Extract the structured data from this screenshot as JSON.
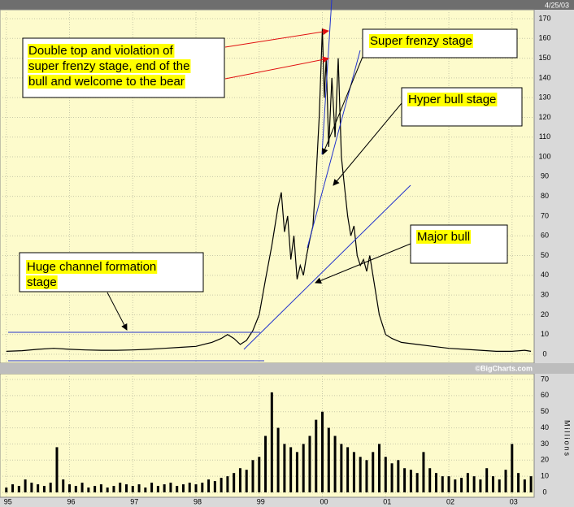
{
  "chart_data": [
    {
      "type": "line",
      "date": "4/25/03",
      "color": "#000000",
      "x": [
        1995.0,
        1995.25,
        1995.5,
        1995.75,
        1996.0,
        1996.25,
        1996.5,
        1996.75,
        1997.0,
        1997.25,
        1997.5,
        1997.75,
        1998.0,
        1998.25,
        1998.4,
        1998.5,
        1998.6,
        1998.7,
        1998.8,
        1998.9,
        1999.0,
        1999.1,
        1999.2,
        1999.3,
        1999.35,
        1999.4,
        1999.45,
        1999.5,
        1999.55,
        1999.6,
        1999.65,
        1999.7,
        1999.75,
        1999.8,
        1999.85,
        1999.9,
        1999.95,
        2000.0,
        2000.03,
        2000.06,
        2000.1,
        2000.15,
        2000.2,
        2000.25,
        2000.3,
        2000.35,
        2000.4,
        2000.45,
        2000.5,
        2000.55,
        2000.6,
        2000.65,
        2000.7,
        2000.75,
        2000.8,
        2000.85,
        2000.9,
        2000.95,
        2001.0,
        2001.1,
        2001.25,
        2001.5,
        2001.75,
        2002.0,
        2002.25,
        2002.5,
        2002.75,
        2003.0,
        2003.2,
        2003.3
      ],
      "values": [
        1.5,
        1.8,
        2.5,
        3,
        2.5,
        2.2,
        2,
        2,
        2.2,
        2.5,
        3,
        3.5,
        4,
        6,
        8,
        10,
        8,
        5,
        7,
        12,
        20,
        38,
        55,
        75,
        82,
        62,
        70,
        48,
        60,
        38,
        45,
        40,
        50,
        58,
        65,
        90,
        120,
        165,
        130,
        150,
        105,
        140,
        110,
        150,
        100,
        85,
        70,
        60,
        65,
        50,
        45,
        48,
        42,
        50,
        40,
        30,
        20,
        15,
        10,
        8,
        6,
        5,
        4,
        3,
        2.5,
        2,
        1.5,
        1.5,
        2,
        1.5
      ],
      "xlim": [
        1994.9,
        2003.35
      ],
      "ylim": [
        0,
        170
      ],
      "yticks": [
        0,
        10,
        20,
        30,
        40,
        50,
        60,
        70,
        80,
        90,
        100,
        110,
        120,
        130,
        140,
        150,
        160,
        170
      ],
      "grid": true,
      "credit": "©BigCharts.com",
      "annotations": [
        [
          "Double top and violation of",
          "super frenzy stage, end of the",
          "bull and welcome to the bear"
        ],
        [
          "Super frenzy stage"
        ],
        [
          "Hyper bull stage"
        ],
        [
          "Major bull"
        ],
        [
          "Huge channel formation",
          "stage"
        ]
      ]
    },
    {
      "type": "bar",
      "color": "#000000",
      "y_label": "Millions",
      "x": [
        1995.0,
        1995.1,
        1995.2,
        1995.3,
        1995.4,
        1995.5,
        1995.6,
        1995.7,
        1995.8,
        1995.9,
        1996.0,
        1996.1,
        1996.2,
        1996.3,
        1996.4,
        1996.5,
        1996.6,
        1996.7,
        1996.8,
        1996.9,
        1997.0,
        1997.1,
        1997.2,
        1997.3,
        1997.4,
        1997.5,
        1997.6,
        1997.7,
        1997.8,
        1997.9,
        1998.0,
        1998.1,
        1998.2,
        1998.3,
        1998.4,
        1998.5,
        1998.6,
        1998.7,
        1998.8,
        1998.9,
        1999.0,
        1999.1,
        1999.2,
        1999.3,
        1999.4,
        1999.5,
        1999.6,
        1999.7,
        1999.8,
        1999.9,
        2000.0,
        2000.1,
        2000.2,
        2000.3,
        2000.4,
        2000.5,
        2000.6,
        2000.7,
        2000.8,
        2000.9,
        2001.0,
        2001.1,
        2001.2,
        2001.3,
        2001.4,
        2001.5,
        2001.6,
        2001.7,
        2001.8,
        2001.9,
        2002.0,
        2002.1,
        2002.2,
        2002.3,
        2002.4,
        2002.5,
        2002.6,
        2002.7,
        2002.8,
        2002.9,
        2003.0,
        2003.1,
        2003.2,
        2003.3
      ],
      "values": [
        3,
        5,
        4,
        8,
        6,
        5,
        4,
        6,
        28,
        8,
        5,
        4,
        6,
        3,
        4,
        5,
        3,
        4,
        6,
        5,
        4,
        5,
        3,
        6,
        4,
        5,
        6,
        4,
        5,
        6,
        5,
        6,
        8,
        7,
        9,
        10,
        12,
        15,
        14,
        20,
        22,
        35,
        62,
        40,
        30,
        28,
        25,
        30,
        35,
        45,
        50,
        40,
        35,
        30,
        28,
        25,
        22,
        20,
        25,
        30,
        22,
        18,
        20,
        15,
        14,
        12,
        25,
        15,
        12,
        10,
        10,
        8,
        9,
        12,
        10,
        8,
        15,
        10,
        8,
        14,
        30,
        12,
        8,
        10
      ],
      "xlim": [
        1994.9,
        2003.35
      ],
      "ylim": [
        0,
        70
      ],
      "yticks": [
        0,
        10,
        20,
        30,
        40,
        50,
        60,
        70
      ],
      "xticks": [
        {
          "value": 1995,
          "label": "95"
        },
        {
          "value": 1996,
          "label": "96"
        },
        {
          "value": 1997,
          "label": "97"
        },
        {
          "value": 1998,
          "label": "98"
        },
        {
          "value": 1999,
          "label": "99"
        },
        {
          "value": 2000,
          "label": "00"
        },
        {
          "value": 2001,
          "label": "01"
        },
        {
          "value": 2002,
          "label": "02"
        },
        {
          "value": 2003,
          "label": "03"
        }
      ],
      "grid": true
    }
  ]
}
